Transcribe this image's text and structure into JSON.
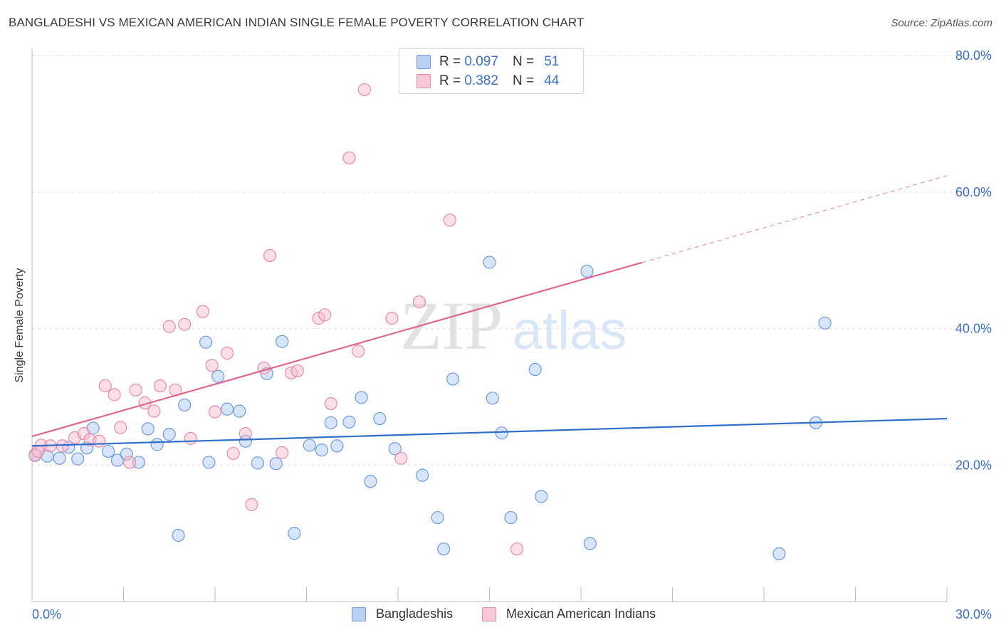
{
  "title": "BANGLADESHI VS MEXICAN AMERICAN INDIAN SINGLE FEMALE POVERTY CORRELATION CHART",
  "source": "Source: ZipAtlas.com",
  "watermark": {
    "part1": "ZIP",
    "part2": "atlas"
  },
  "legend": {
    "rows": [
      {
        "r_label": "R =",
        "r_value": "0.097",
        "n_label": "N =",
        "n_value": "51"
      },
      {
        "r_label": "R =",
        "r_value": "0.382",
        "n_label": "N =",
        "n_value": "44"
      }
    ]
  },
  "colors": {
    "blue_fill": "#a9c6f0",
    "blue_stroke": "#6d9bdc",
    "blue_line": "#2e6fcc",
    "pink_fill": "#f6b8cb",
    "pink_stroke": "#e88aa8",
    "pink_line": "#e06690",
    "tick_label": "#3b6fc4",
    "grid": "#dddddd"
  },
  "chart_data": {
    "type": "scatter",
    "title": "BANGLADESHI VS MEXICAN AMERICAN INDIAN SINGLE FEMALE POVERTY CORRELATION CHART",
    "xlabel": "",
    "ylabel": "Single Female Poverty",
    "xlim": [
      0,
      30
    ],
    "ylim": [
      0,
      80
    ],
    "x_tick_labels": [
      "0.0%",
      "30.0%"
    ],
    "y_ticks": [
      20,
      40,
      60,
      80
    ],
    "y_tick_labels": [
      "20.0%",
      "40.0%",
      "60.0%",
      "80.0%"
    ],
    "grid": true,
    "legend_position": "bottom",
    "series": [
      {
        "name": "Bangladeshis",
        "color": "#a9c6f0",
        "trend": {
          "x0": 0,
          "y0": 22.8,
          "x1": 30,
          "y1": 26.8,
          "dashed_from": null
        },
        "points": [
          [
            0.1,
            21.5
          ],
          [
            0.5,
            21.3
          ],
          [
            0.9,
            21.0
          ],
          [
            1.2,
            22.6
          ],
          [
            1.5,
            20.9
          ],
          [
            1.8,
            22.5
          ],
          [
            2.0,
            25.4
          ],
          [
            2.5,
            22.0
          ],
          [
            2.8,
            20.7
          ],
          [
            3.1,
            21.6
          ],
          [
            3.5,
            20.4
          ],
          [
            3.8,
            25.3
          ],
          [
            4.1,
            23.0
          ],
          [
            4.5,
            24.5
          ],
          [
            4.8,
            9.7
          ],
          [
            5.0,
            28.8
          ],
          [
            5.7,
            38.0
          ],
          [
            5.8,
            20.4
          ],
          [
            6.1,
            33.0
          ],
          [
            6.4,
            28.2
          ],
          [
            6.8,
            27.9
          ],
          [
            7.0,
            23.5
          ],
          [
            7.4,
            20.3
          ],
          [
            7.7,
            33.4
          ],
          [
            8.0,
            20.2
          ],
          [
            8.2,
            38.1
          ],
          [
            8.6,
            10.0
          ],
          [
            9.1,
            22.9
          ],
          [
            9.5,
            22.2
          ],
          [
            9.8,
            26.2
          ],
          [
            10.0,
            22.8
          ],
          [
            10.4,
            26.3
          ],
          [
            10.8,
            29.9
          ],
          [
            11.1,
            17.6
          ],
          [
            11.4,
            26.8
          ],
          [
            11.9,
            22.4
          ],
          [
            12.8,
            18.5
          ],
          [
            13.3,
            12.3
          ],
          [
            13.5,
            7.7
          ],
          [
            13.8,
            32.6
          ],
          [
            15.0,
            49.7
          ],
          [
            15.1,
            29.8
          ],
          [
            15.4,
            24.7
          ],
          [
            15.7,
            12.3
          ],
          [
            16.5,
            34.0
          ],
          [
            16.7,
            15.4
          ],
          [
            18.2,
            48.4
          ],
          [
            18.3,
            8.5
          ],
          [
            24.5,
            7.0
          ],
          [
            25.7,
            26.2
          ],
          [
            26.0,
            40.8
          ]
        ]
      },
      {
        "name": "Mexican American Indians",
        "color": "#f6b8cb",
        "trend": {
          "x0": 0,
          "y0": 24.2,
          "x1": 30,
          "y1": 62.4,
          "dashed_from": 20.0
        },
        "points": [
          [
            0.1,
            21.4
          ],
          [
            0.3,
            22.9
          ],
          [
            0.6,
            22.8
          ],
          [
            1.0,
            22.8
          ],
          [
            1.4,
            24.0
          ],
          [
            1.7,
            24.6
          ],
          [
            1.9,
            23.7
          ],
          [
            2.2,
            23.5
          ],
          [
            2.4,
            31.6
          ],
          [
            2.7,
            30.3
          ],
          [
            2.9,
            25.5
          ],
          [
            3.2,
            20.4
          ],
          [
            3.4,
            31.0
          ],
          [
            3.7,
            29.1
          ],
          [
            4.0,
            27.9
          ],
          [
            4.2,
            31.6
          ],
          [
            4.5,
            40.3
          ],
          [
            4.7,
            31.0
          ],
          [
            5.0,
            40.6
          ],
          [
            5.2,
            23.9
          ],
          [
            5.6,
            42.5
          ],
          [
            5.9,
            34.6
          ],
          [
            6.0,
            27.8
          ],
          [
            6.4,
            36.4
          ],
          [
            6.6,
            21.7
          ],
          [
            7.0,
            24.6
          ],
          [
            7.2,
            14.2
          ],
          [
            7.6,
            34.2
          ],
          [
            7.8,
            50.7
          ],
          [
            8.2,
            21.8
          ],
          [
            8.5,
            33.5
          ],
          [
            8.7,
            33.8
          ],
          [
            9.4,
            41.5
          ],
          [
            9.6,
            42.0
          ],
          [
            9.8,
            29.0
          ],
          [
            10.4,
            65.0
          ],
          [
            10.7,
            36.7
          ],
          [
            10.9,
            75.0
          ],
          [
            11.8,
            41.5
          ],
          [
            12.1,
            21.0
          ],
          [
            12.7,
            43.9
          ],
          [
            13.7,
            55.9
          ],
          [
            15.9,
            7.7
          ],
          [
            0.2,
            22.0
          ]
        ]
      }
    ]
  },
  "bottom_legend": [
    {
      "label": "Bangladeshis"
    },
    {
      "label": "Mexican American Indians"
    }
  ]
}
